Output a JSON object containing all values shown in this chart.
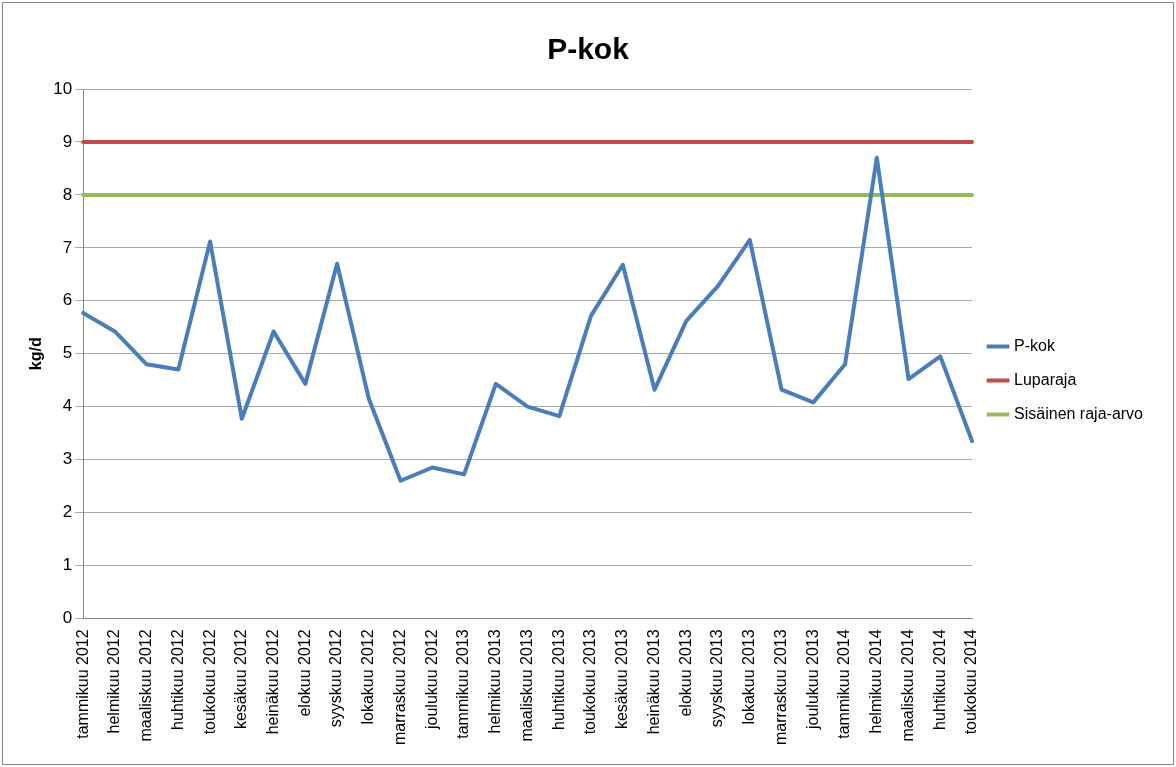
{
  "chart_data": {
    "type": "line",
    "title": "P-kok",
    "ylabel": "kg/d",
    "categories": [
      "tammikuu 2012",
      "helmikuu 2012",
      "maaliskuu 2012",
      "huhtikuu 2012",
      "toukokuu 2012",
      "kesäkuu 2012",
      "heinäkuu 2012",
      "elokuu 2012",
      "syyskuu 2012",
      "lokakuu 2012",
      "marraskuu 2012",
      "joulukuu 2012",
      "tammikuu 2013",
      "helmikuu 2013",
      "maaliskuu 2013",
      "huhtikuu 2013",
      "toukokuu 2013",
      "kesäkuu 2013",
      "heinäkuu 2013",
      "elokuu 2013",
      "syyskuu 2013",
      "lokakuu 2013",
      "marraskuu 2013",
      "joulukuu 2013",
      "tammikuu 2014",
      "helmikuu 2014",
      "maaliskuu 2014",
      "huhtikuu 2014",
      "toukokuu 2014"
    ],
    "series": [
      {
        "name": "P-kok",
        "color": "#4a7ebb",
        "values": [
          5.77,
          5.42,
          4.8,
          4.7,
          7.12,
          3.77,
          5.42,
          4.43,
          6.7,
          4.15,
          2.6,
          2.85,
          2.72,
          4.43,
          4.0,
          3.82,
          5.72,
          6.68,
          4.32,
          5.62,
          6.28,
          7.15,
          4.32,
          4.08,
          4.8,
          8.7,
          4.52,
          4.95,
          3.35
        ]
      },
      {
        "name": "Luparaja",
        "color": "#be4b48",
        "values": [
          9,
          9,
          9,
          9,
          9,
          9,
          9,
          9,
          9,
          9,
          9,
          9,
          9,
          9,
          9,
          9,
          9,
          9,
          9,
          9,
          9,
          9,
          9,
          9,
          9,
          9,
          9,
          9,
          9
        ]
      },
      {
        "name": "Sisäinen raja-arvo",
        "color": "#98b954",
        "values": [
          8,
          8,
          8,
          8,
          8,
          8,
          8,
          8,
          8,
          8,
          8,
          8,
          8,
          8,
          8,
          8,
          8,
          8,
          8,
          8,
          8,
          8,
          8,
          8,
          8,
          8,
          8,
          8,
          8
        ]
      }
    ],
    "ylim": [
      0,
      10
    ],
    "yticks": [
      0,
      1,
      2,
      3,
      4,
      5,
      6,
      7,
      8,
      9,
      10
    ],
    "grid": "y",
    "legend": "right",
    "marker": "none",
    "line_style": "solid"
  }
}
